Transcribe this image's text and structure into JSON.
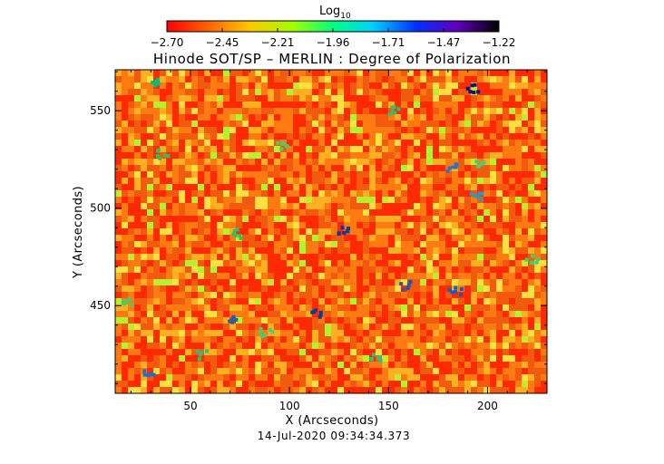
{
  "colorbar": {
    "label_main": "Log",
    "label_sub": "10",
    "ticks": [
      "-2.70",
      "-2.45",
      "-2.21",
      "-1.96",
      "-1.71",
      "-1.47",
      "-1.22"
    ],
    "min": -2.7,
    "max": -1.22,
    "colormap": "rainbow (red to black)",
    "colors": [
      "#ff0000",
      "#ff8000",
      "#ffff00",
      "#00ff00",
      "#00ffff",
      "#0000ff",
      "#8000ff",
      "#000000"
    ]
  },
  "title": "Hinode SOT/SP – MERLIN : Degree of Polarization",
  "x_axis": {
    "label": "X (Arcseconds)",
    "ticks": [
      "50",
      "100",
      "150",
      "200"
    ],
    "range": [
      12,
      230
    ]
  },
  "y_axis": {
    "label": "Y (Arcseconds)",
    "ticks": [
      "450",
      "500",
      "550"
    ],
    "range": [
      405,
      571
    ]
  },
  "timestamp": "14-Jul-2020 09:34:34.373",
  "image": {
    "content": "degree of polarization map, predominantly red/orange with scattered yellow, green, and blue/black magnetic features",
    "dominant_color": "#f25a0e"
  }
}
